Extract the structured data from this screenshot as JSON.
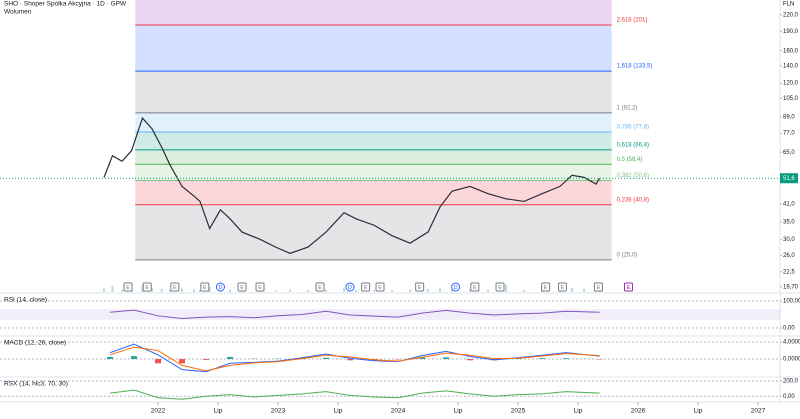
{
  "chart_data": [
    {
      "type": "line",
      "title": "SHO · Shoper Spółka Akcyjna · 1D · GPW",
      "subtitle": "Wolumen",
      "currency": "FLN",
      "log_scale": true,
      "xlim": [
        2020.683,
        2027.183
      ],
      "ylim": [
        18.8,
        251
      ],
      "xticks": [
        2022,
        {
          "value": 2022.5,
          "label": "Lip"
        },
        2023,
        {
          "value": 2023.5,
          "label": "Lip"
        },
        2024,
        {
          "value": 2024.5,
          "label": "Lip"
        },
        2025,
        {
          "value": 2025.5,
          "label": "Lip"
        },
        2026,
        {
          "value": 2026.5,
          "label": "Lip"
        },
        2027
      ],
      "yticks": [
        {
          "value": 220,
          "label": "220,0"
        },
        {
          "value": 190,
          "label": "190,0"
        },
        {
          "value": 160,
          "label": "160,0"
        },
        {
          "value": 140,
          "label": "140,0"
        },
        {
          "value": 120,
          "label": "120,0"
        },
        {
          "value": 105,
          "label": "105,0"
        },
        {
          "value": 89,
          "label": "89,0"
        },
        {
          "value": 77,
          "label": "77,0"
        },
        {
          "value": 65,
          "label": "65,0"
        },
        {
          "value": 41,
          "label": "41,0"
        },
        {
          "value": 35,
          "label": "35,0"
        },
        {
          "value": 30,
          "label": "30,0"
        },
        {
          "value": 26,
          "label": "26,0"
        },
        {
          "value": 22.5,
          "label": "22,5"
        },
        {
          "value": 19.7,
          "label": "19,70"
        }
      ],
      "x": [
        2021.55,
        2021.62,
        2021.7,
        2021.78,
        2021.87,
        2021.95,
        2022.03,
        2022.1,
        2022.2,
        2022.3,
        2022.35,
        2022.43,
        2022.52,
        2022.6,
        2022.7,
        2022.85,
        2022.98,
        2023.1,
        2023.25,
        2023.4,
        2023.55,
        2023.65,
        2023.8,
        2023.95,
        2024.1,
        2024.25,
        2024.35,
        2024.45,
        2024.6,
        2024.75,
        2024.9,
        2025.05,
        2025.2,
        2025.35,
        2025.45,
        2025.55,
        2025.65,
        2025.68
      ],
      "values": [
        52,
        63,
        60,
        66,
        88,
        80,
        68,
        58,
        48,
        44,
        42,
        33,
        39,
        36,
        32,
        30,
        28,
        26.5,
        28,
        32,
        38,
        36,
        34,
        31,
        29,
        32,
        40,
        46,
        48,
        45,
        43,
        42,
        45,
        48,
        53,
        52,
        49,
        51.6
      ],
      "color": "#2a2e39",
      "volume": [
        12,
        20,
        8,
        10,
        25,
        15,
        10,
        8,
        12,
        9,
        7,
        18,
        10,
        8,
        6,
        7,
        5,
        9,
        6,
        8,
        14,
        7,
        6,
        6,
        8,
        10,
        12,
        15,
        9,
        8,
        25,
        7,
        9,
        10,
        14,
        11,
        8,
        6
      ],
      "volume_lim": [
        0,
        100
      ],
      "volume_color": "#b2dfdb",
      "current_price": 51.6,
      "current_price_label": "51,6",
      "current_price_color": "#089981",
      "fib_x": [
        2021.81,
        2025.78
      ],
      "top_zone_color": "#9c27b0",
      "fib_levels": [
        {
          "value": 201,
          "label": "2,618 (201)",
          "color": "#f23645"
        },
        {
          "value": 133.5,
          "label": "1,618 (133,5)",
          "color": "#2962ff"
        },
        {
          "value": 92.2,
          "label": "1 (92,2)",
          "color": "#787b86"
        },
        {
          "value": 77.8,
          "label": "0,786 (77,8)",
          "color": "#64b5f6"
        },
        {
          "value": 66.4,
          "label": "0,618 (66,4)",
          "color": "#089981"
        },
        {
          "value": 58.4,
          "label": "0,5 (58,4)",
          "color": "#4caf50"
        },
        {
          "value": 50.6,
          "label": "0,382 (50,6)",
          "color": "#81c784"
        },
        {
          "value": 40.8,
          "label": "0,236 (40,8)",
          "color": "#f23645"
        },
        {
          "value": 25,
          "label": "0 (25,0)",
          "color": "#787b86"
        }
      ],
      "events": [
        {
          "x": 2021.75,
          "label": "E",
          "color": "#787b86"
        },
        {
          "x": 2021.91,
          "label": "E",
          "color": "#787b86"
        },
        {
          "x": 2022.14,
          "label": "E",
          "color": "#787b86"
        },
        {
          "x": 2022.39,
          "label": "E",
          "color": "#787b86"
        },
        {
          "x": 2022.52,
          "label": "D",
          "color": "#2962ff"
        },
        {
          "x": 2022.7,
          "label": "E",
          "color": "#787b86"
        },
        {
          "x": 2022.85,
          "label": "E",
          "color": "#787b86"
        },
        {
          "x": 2023.35,
          "label": "E",
          "color": "#787b86"
        },
        {
          "x": 2023.6,
          "label": "D",
          "color": "#2962ff"
        },
        {
          "x": 2023.73,
          "label": "E",
          "color": "#787b86"
        },
        {
          "x": 2023.85,
          "label": "E",
          "color": "#787b86"
        },
        {
          "x": 2024.18,
          "label": "E",
          "color": "#787b86"
        },
        {
          "x": 2024.48,
          "label": "D",
          "color": "#2962ff"
        },
        {
          "x": 2024.64,
          "label": "E",
          "color": "#787b86"
        },
        {
          "x": 2024.85,
          "label": "E",
          "color": "#787b86"
        },
        {
          "x": 2025.23,
          "label": "E",
          "color": "#787b86"
        },
        {
          "x": 2025.37,
          "label": "E",
          "color": "#787b86"
        },
        {
          "x": 2025.67,
          "label": "E",
          "color": "#787b86"
        },
        {
          "x": 2025.92,
          "label": "E",
          "color": "#9c27b0"
        }
      ]
    },
    {
      "type": "line",
      "title": "RSI (14, close)",
      "xlim": [
        2020.683,
        2027.183
      ],
      "ylim": [
        -26,
        122
      ],
      "yticks": [
        {
          "value": 100,
          "label": "100,00"
        },
        {
          "value": 0,
          "label": "0,00"
        }
      ],
      "band": [
        30,
        70
      ],
      "band_color": "#7e57c2",
      "x": [
        2021.6,
        2021.8,
        2022.0,
        2022.2,
        2022.4,
        2022.6,
        2022.8,
        2023.0,
        2023.2,
        2023.4,
        2023.6,
        2023.8,
        2024.0,
        2024.2,
        2024.4,
        2024.6,
        2024.8,
        2025.0,
        2025.2,
        2025.4,
        2025.68
      ],
      "series": [
        {
          "color": "#7e57c2",
          "values": [
            58,
            66,
            45,
            35,
            40,
            42,
            38,
            45,
            50,
            62,
            48,
            44,
            40,
            55,
            65,
            55,
            48,
            52,
            55,
            62,
            58
          ]
        }
      ]
    },
    {
      "type": "macd",
      "title": "MACD (12, 26, close)",
      "xlim": [
        2020.683,
        2027.183
      ],
      "ylim": [
        -4,
        5.2
      ],
      "yticks": [
        {
          "value": 4,
          "label": "4,0000"
        },
        {
          "value": 0,
          "label": "0,0000"
        }
      ],
      "x": [
        2021.6,
        2021.8,
        2022.0,
        2022.2,
        2022.4,
        2022.6,
        2022.8,
        2023.0,
        2023.2,
        2023.4,
        2023.6,
        2023.8,
        2024.0,
        2024.2,
        2024.4,
        2024.6,
        2024.8,
        2025.0,
        2025.2,
        2025.4,
        2025.68
      ],
      "histogram": [
        0.5,
        0.7,
        -1.0,
        -1.0,
        -0.2,
        0.5,
        0.1,
        0.1,
        0.2,
        0.3,
        -0.3,
        -0.2,
        -0.1,
        0.4,
        0.4,
        -0.3,
        -0.3,
        0.1,
        0.2,
        0.2,
        -0.1
      ],
      "histogram_colors": [
        "#26a69a",
        "#ef5350"
      ],
      "series": [
        {
          "color": "#2962ff",
          "values": [
            1.5,
            3.5,
            1.0,
            -2.5,
            -3.0,
            -1.0,
            -0.8,
            -0.5,
            0.3,
            1.2,
            0.2,
            -0.4,
            -0.6,
            0.8,
            1.8,
            0.6,
            -0.2,
            0.3,
            0.9,
            1.5,
            0.7
          ]
        },
        {
          "color": "#ff6d00",
          "values": [
            1.0,
            2.8,
            2.0,
            -1.5,
            -2.8,
            -1.5,
            -0.9,
            -0.6,
            0.1,
            0.9,
            0.5,
            -0.2,
            -0.5,
            0.4,
            1.4,
            0.9,
            0.1,
            0.2,
            0.7,
            1.3,
            0.8
          ]
        }
      ]
    },
    {
      "type": "line",
      "title": "RSX (14, hlc3, 70, 30)",
      "xlim": [
        2020.683,
        2027.183
      ],
      "ylim": [
        -62.5,
        237
      ],
      "yticks": [
        {
          "value": 200,
          "label": "200,0"
        },
        {
          "value": 0,
          "label": "0,00"
        }
      ],
      "x": [
        2021.6,
        2021.8,
        2022.0,
        2022.2,
        2022.4,
        2022.6,
        2022.8,
        2023.0,
        2023.2,
        2023.4,
        2023.6,
        2023.8,
        2024.0,
        2024.2,
        2024.4,
        2024.6,
        2024.8,
        2025.0,
        2025.2,
        2025.4,
        2025.68
      ],
      "series": [
        {
          "color": "#4caf50",
          "values": [
            40,
            80,
            -20,
            -40,
            0,
            20,
            -10,
            10,
            30,
            60,
            10,
            -10,
            -20,
            40,
            70,
            30,
            0,
            20,
            30,
            60,
            40
          ]
        }
      ]
    }
  ]
}
